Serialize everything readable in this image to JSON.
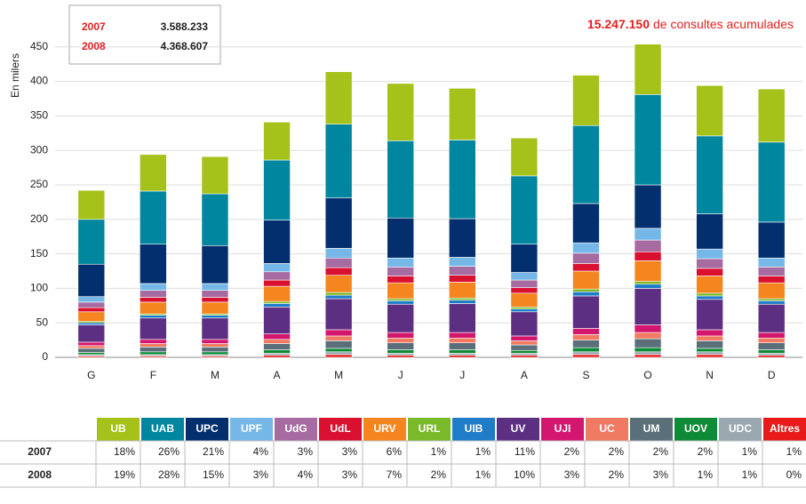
{
  "chart_data": {
    "type": "stacked_bar",
    "y_label": "En milers",
    "annotation": {
      "total": "15.247.150",
      "text": "de consultes acumulades"
    },
    "legend_box": {
      "rows": [
        [
          "2007",
          "3.588.233"
        ],
        [
          "2008",
          "4.368.607"
        ]
      ]
    },
    "categories": [
      "G",
      "F",
      "M",
      "A",
      "M",
      "J",
      "J",
      "A",
      "S",
      "O",
      "N",
      "D"
    ],
    "ylim": [
      0,
      460
    ],
    "yticks": [
      0,
      50,
      100,
      150,
      200,
      250,
      300,
      350,
      400,
      450
    ],
    "series": [
      {
        "name": "Altres",
        "color": "#e81a1a",
        "values": [
          2,
          2,
          2,
          3,
          4,
          3,
          3,
          3,
          4,
          4,
          4,
          3
        ]
      },
      {
        "name": "UDC",
        "color": "#9aa8b0",
        "values": [
          2,
          2,
          2,
          3,
          4,
          3,
          3,
          3,
          4,
          4,
          4,
          3
        ]
      },
      {
        "name": "UOV",
        "color": "#0f8a36",
        "values": [
          3,
          4,
          4,
          5,
          5,
          5,
          5,
          4,
          6,
          6,
          5,
          5
        ]
      },
      {
        "name": "UM",
        "color": "#5a6f7a",
        "values": [
          6,
          7,
          7,
          9,
          11,
          10,
          10,
          8,
          11,
          13,
          11,
          10
        ]
      },
      {
        "name": "UC",
        "color": "#f07a62",
        "values": [
          4,
          5,
          5,
          6,
          7,
          7,
          7,
          6,
          8,
          9,
          7,
          7
        ]
      },
      {
        "name": "UJI",
        "color": "#d3166e",
        "values": [
          5,
          6,
          6,
          8,
          9,
          8,
          8,
          7,
          9,
          11,
          9,
          8
        ]
      },
      {
        "name": "UV",
        "color": "#5d2f82",
        "values": [
          25,
          31,
          31,
          39,
          45,
          41,
          42,
          35,
          47,
          53,
          44,
          41
        ]
      },
      {
        "name": "UIB",
        "color": "#1f7cc9",
        "values": [
          3,
          4,
          4,
          5,
          5,
          5,
          5,
          4,
          6,
          6,
          5,
          5
        ]
      },
      {
        "name": "URL",
        "color": "#7ab929",
        "values": [
          2,
          2,
          2,
          3,
          4,
          3,
          3,
          3,
          4,
          4,
          4,
          3
        ]
      },
      {
        "name": "URV",
        "color": "#f5861f",
        "values": [
          14,
          17,
          17,
          22,
          25,
          23,
          23,
          20,
          26,
          30,
          25,
          23
        ]
      },
      {
        "name": "UdL",
        "color": "#d9102f",
        "values": [
          6,
          7,
          7,
          9,
          11,
          10,
          10,
          8,
          11,
          13,
          11,
          10
        ]
      },
      {
        "name": "UdG",
        "color": "#a66ba0",
        "values": [
          8,
          10,
          10,
          12,
          14,
          13,
          13,
          11,
          15,
          17,
          14,
          13
        ]
      },
      {
        "name": "UPF",
        "color": "#75b8e8",
        "values": [
          8,
          10,
          10,
          12,
          14,
          13,
          13,
          11,
          15,
          17,
          14,
          13
        ]
      },
      {
        "name": "UPC",
        "color": "#032f6e",
        "values": [
          47,
          57,
          55,
          63,
          73,
          58,
          56,
          41,
          57,
          63,
          51,
          52
        ]
      },
      {
        "name": "UAB",
        "color": "#00869e",
        "values": [
          65,
          77,
          75,
          87,
          107,
          112,
          114,
          99,
          113,
          131,
          113,
          116
        ]
      },
      {
        "name": "UB",
        "color": "#a5c21a",
        "values": [
          42,
          53,
          54,
          55,
          76,
          83,
          75,
          55,
          73,
          73,
          73,
          77
        ]
      }
    ]
  },
  "table": {
    "header": [
      "UB",
      "UAB",
      "UPC",
      "UPF",
      "UdG",
      "UdL",
      "URV",
      "URL",
      "UIB",
      "UV",
      "UJI",
      "UC",
      "UM",
      "UOV",
      "UDC",
      "Altres"
    ],
    "header_colors": [
      "#a5c21a",
      "#00869e",
      "#032f6e",
      "#75b8e8",
      "#a66ba0",
      "#d9102f",
      "#f5861f",
      "#7ab929",
      "#1f7cc9",
      "#5d2f82",
      "#d3166e",
      "#f07a62",
      "#5a6f7a",
      "#0f8a36",
      "#9aa8b0",
      "#e81a1a"
    ],
    "rows": [
      {
        "label": "2007",
        "cells": [
          "18%",
          "26%",
          "21%",
          "4%",
          "3%",
          "3%",
          "6%",
          "1%",
          "1%",
          "11%",
          "2%",
          "2%",
          "2%",
          "2%",
          "1%",
          "1%"
        ]
      },
      {
        "label": "2008",
        "cells": [
          "19%",
          "28%",
          "15%",
          "3%",
          "4%",
          "3%",
          "7%",
          "2%",
          "1%",
          "10%",
          "3%",
          "2%",
          "3%",
          "1%",
          "1%",
          "0%"
        ]
      }
    ]
  }
}
